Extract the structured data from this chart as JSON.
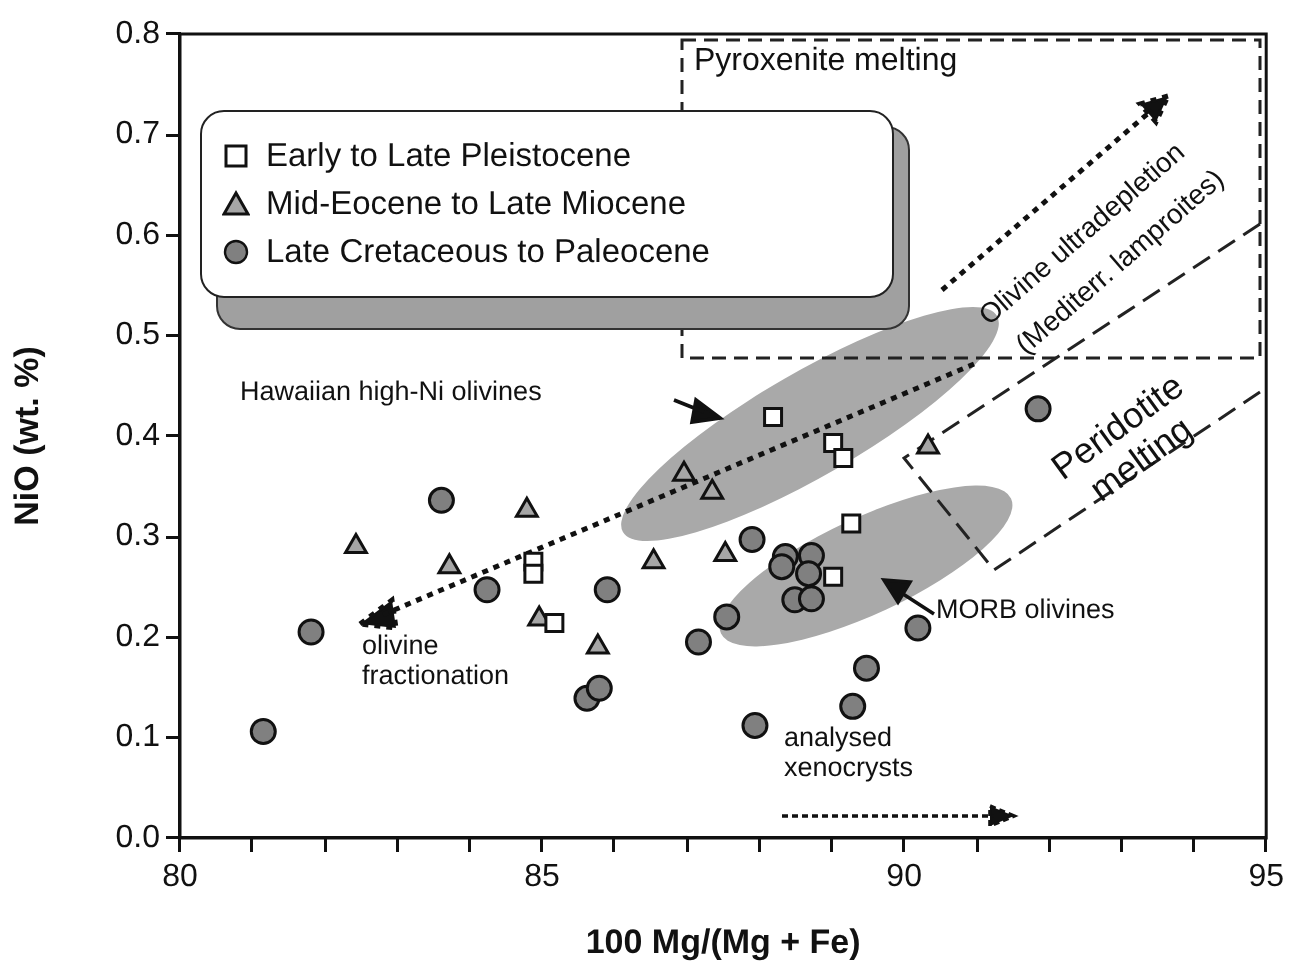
{
  "chart_data": {
    "type": "scatter",
    "xlabel": "100 Mg/(Mg + Fe)",
    "ylabel": "NiO (wt. %)",
    "xlim": [
      80,
      95
    ],
    "ylim": [
      0,
      0.8
    ],
    "xticks": [
      80,
      {
        "value": 81,
        "label": null
      },
      {
        "value": 82,
        "label": null
      },
      {
        "value": 83,
        "label": null
      },
      {
        "value": 84,
        "label": null
      },
      85,
      {
        "value": 86,
        "label": null
      },
      {
        "value": 87,
        "label": null
      },
      {
        "value": 88,
        "label": null
      },
      {
        "value": 89,
        "label": null
      },
      90,
      {
        "value": 91,
        "label": null
      },
      {
        "value": 92,
        "label": null
      },
      {
        "value": 93,
        "label": null
      },
      {
        "value": 94,
        "label": null
      },
      95
    ],
    "yticks": [
      {
        "value": 0,
        "label": "0.0"
      },
      {
        "value": 0.1,
        "label": "0.1"
      },
      {
        "value": 0.2,
        "label": "0.2"
      },
      {
        "value": 0.3,
        "label": "0.3"
      },
      {
        "value": 0.4,
        "label": "0.4"
      },
      {
        "value": 0.5,
        "label": "0.5"
      },
      {
        "value": 0.6,
        "label": "0.6"
      },
      {
        "value": 0.7,
        "label": "0.7"
      },
      {
        "value": 0.8,
        "label": "0.8"
      }
    ],
    "legend": "top left",
    "series": [
      {
        "name": "Early to Late Pleistocene",
        "color": "#ffffff",
        "marker": "square",
        "x": [
          88.19,
          89.02,
          89.16,
          89.27,
          89.02,
          84.88,
          84.88,
          85.17
        ],
        "values": [
          0.419,
          0.393,
          0.378,
          0.313,
          0.26,
          0.275,
          0.263,
          0.214
        ]
      },
      {
        "name": "Mid-Eocene to Late Miocene",
        "color": "#a6a6a6",
        "marker": "triangle",
        "x": [
          82.43,
          83.72,
          84.79,
          84.96,
          85.77,
          86.54,
          86.96,
          87.35,
          87.53,
          90.33
        ],
        "values": [
          0.29,
          0.27,
          0.326,
          0.218,
          0.19,
          0.275,
          0.362,
          0.344,
          0.282,
          0.389
        ]
      },
      {
        "name": "Late Cretaceous to Paleocene",
        "color": "#808080",
        "marker": "circle",
        "x": [
          83.61,
          84.24,
          85.9,
          81.81,
          81.15,
          87.16,
          85.62,
          85.79,
          87.55,
          87.9,
          88.36,
          88.72,
          88.31,
          88.68,
          88.49,
          88.72,
          90.19,
          89.48,
          89.29,
          87.94,
          91.85
        ],
        "values": [
          0.336,
          0.247,
          0.247,
          0.205,
          0.106,
          0.195,
          0.139,
          0.149,
          0.22,
          0.297,
          0.28,
          0.281,
          0.27,
          0.263,
          0.237,
          0.238,
          0.209,
          0.169,
          0.131,
          0.112,
          0.427
        ]
      }
    ],
    "annotations": [
      "Pyroxenite melting",
      "Olivine ultradepletion",
      "(Mediterr. lamproites)",
      "Peridotite melting",
      "Hawaiian high-Ni olivines",
      "olivine fractionation",
      "MORB olivines",
      "analysed xenocrysts"
    ]
  }
}
